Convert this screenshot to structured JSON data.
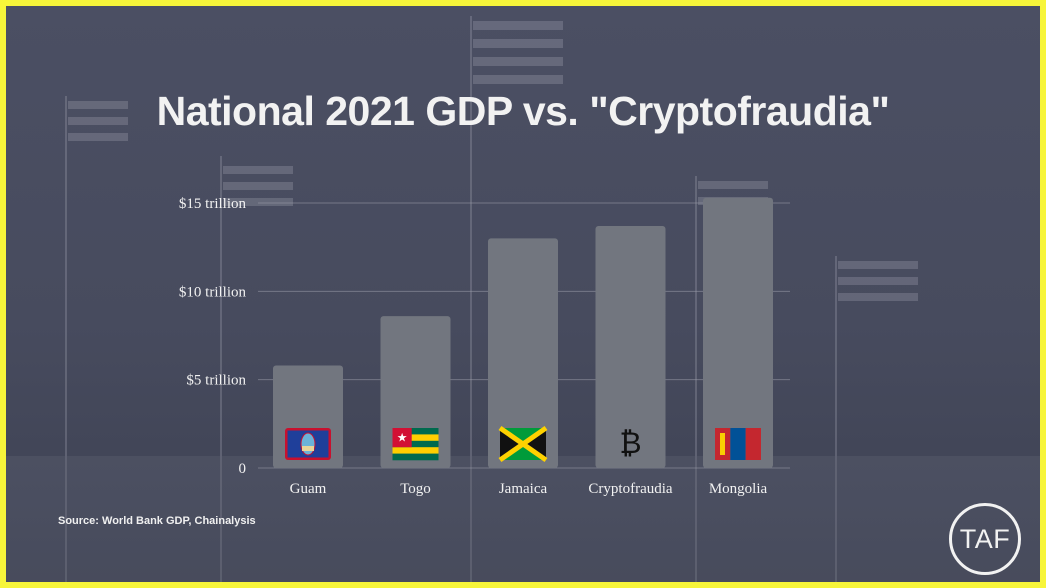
{
  "title": "National 2021 GDP vs. \"Cryptofraudia\"",
  "source": "Source: World Bank GDP, Chainalysis",
  "logo_text": "TAF",
  "colors": {
    "bar": "#72767f",
    "text": "#f2f2f2",
    "grid": "#9a9ca8",
    "border": "#f7f53a"
  },
  "chart_data": {
    "type": "bar",
    "categories": [
      "Guam",
      "Togo",
      "Jamaica",
      "Cryptofraudia",
      "Mongolia"
    ],
    "values": [
      5.8,
      8.6,
      13.0,
      13.7,
      15.3
    ],
    "icons": [
      "guam-flag-icon",
      "togo-flag-icon",
      "jamaica-flag-icon",
      "bitcoin-icon",
      "mongolia-flag-icon"
    ],
    "bitcoin_symbol": "₿",
    "yticks": [
      {
        "value": 0,
        "label": "0"
      },
      {
        "value": 5,
        "label": "$5 trillion"
      },
      {
        "value": 10,
        "label": "$10 trillion"
      },
      {
        "value": 15,
        "label": "$15 trillion"
      }
    ],
    "ylim": [
      0,
      15
    ],
    "grid": true,
    "legend": "none"
  }
}
